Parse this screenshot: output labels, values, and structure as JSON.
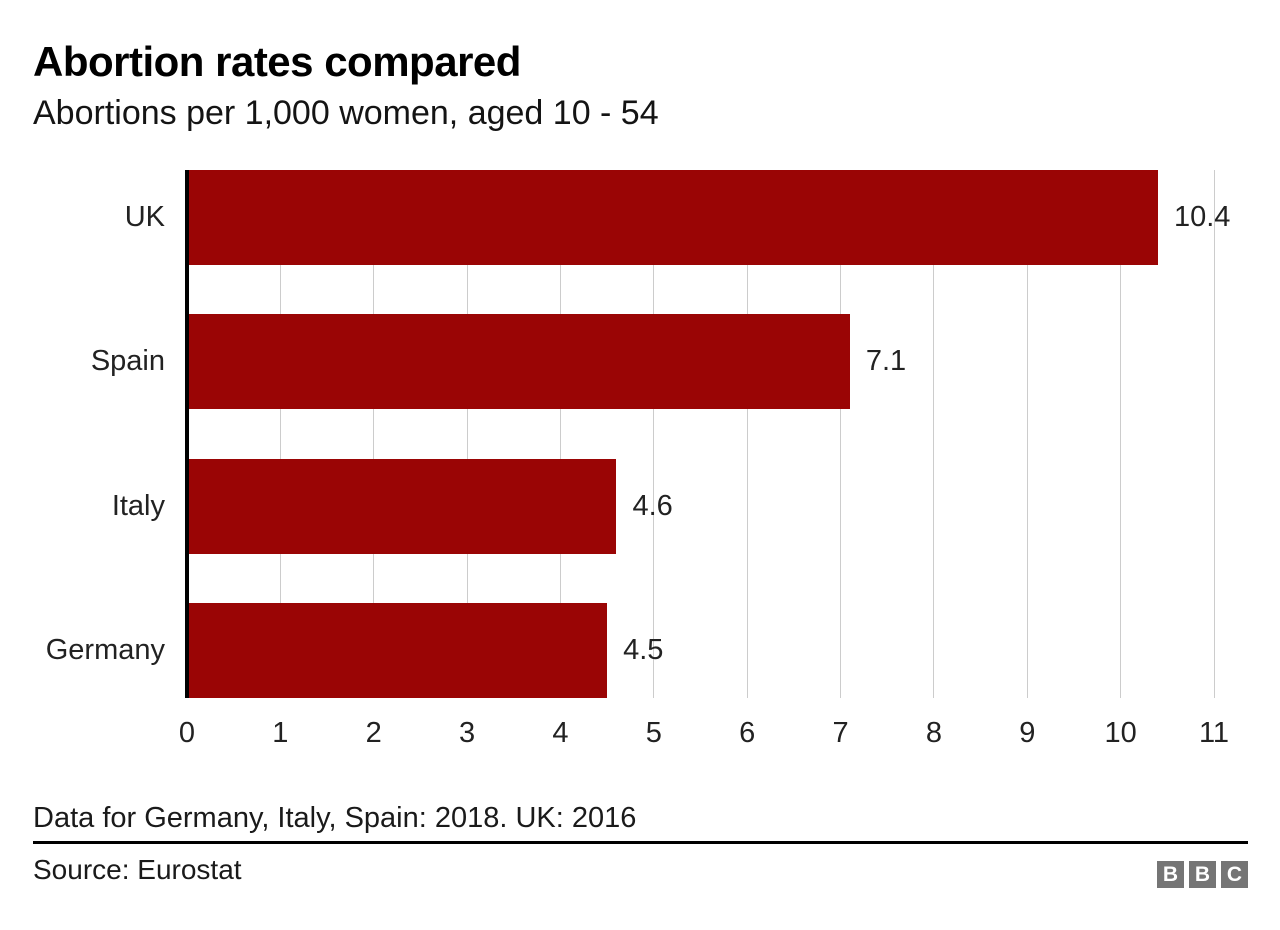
{
  "header": {
    "title": "Abortion rates compared",
    "subtitle": "Abortions per 1,000 women, aged 10 - 54"
  },
  "chart_data": {
    "type": "bar",
    "orientation": "horizontal",
    "title": "Abortion rates compared",
    "subtitle": "Abortions per 1,000 women, aged 10 - 54",
    "categories": [
      "UK",
      "Spain",
      "Italy",
      "Germany"
    ],
    "values": [
      10.4,
      7.1,
      4.6,
      4.5
    ],
    "value_labels": [
      "10.4",
      "7.1",
      "4.6",
      "4.5"
    ],
    "xlabel": "",
    "ylabel": "",
    "xlim": [
      0,
      11
    ],
    "x_ticks": [
      0,
      1,
      2,
      3,
      4,
      5,
      6,
      7,
      8,
      9,
      10,
      11
    ],
    "grid": "vertical",
    "legend": "none",
    "bar_color": "#9a0505",
    "axis_color": "#000000",
    "gridline_color": "#cccccc"
  },
  "footer": {
    "note": "Data for Germany, Italy, Spain: 2018. UK: 2016",
    "source": "Source: Eurostat",
    "logo_letters": [
      "B",
      "B",
      "C"
    ],
    "logo_color": "#757575"
  }
}
